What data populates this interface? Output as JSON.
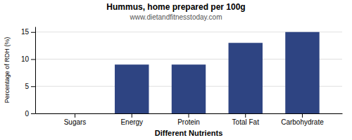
{
  "chart_data": {
    "type": "bar",
    "title": "Hummus, home prepared per 100g",
    "subtitle": "www.dietandfitnesstoday.com",
    "xlabel": "Different Nutrients",
    "ylabel": "Percentage of RDH (%)",
    "categories": [
      "Sugars",
      "Energy",
      "Protein",
      "Total Fat",
      "Carbohydrate"
    ],
    "values": [
      0,
      9,
      9,
      13,
      15
    ],
    "color": "#2e4482",
    "ylim": [
      0,
      16
    ],
    "yticks": [
      0,
      5,
      10,
      15
    ],
    "grid": true
  }
}
